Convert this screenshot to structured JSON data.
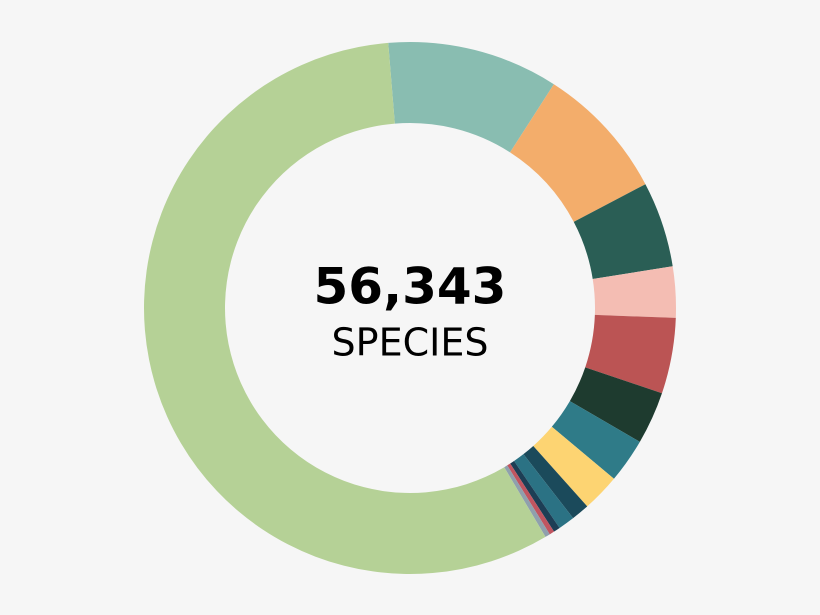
{
  "chart_data": {
    "type": "donut",
    "center_value": "56,343",
    "center_label": "SPECIES",
    "values": [
      10.4,
      8.2,
      5.2,
      3.1,
      4.6,
      3.2,
      2.7,
      2.3,
      1.1,
      1.0,
      0.4,
      0.3,
      0.3,
      57.2
    ],
    "colors": [
      "#89bdb1",
      "#f3ad6b",
      "#2a5e55",
      "#f4bdb3",
      "#bb5454",
      "#1e3b2f",
      "#2f7b88",
      "#fdd472",
      "#1b4a5b",
      "#2b7284",
      "#1d3e55",
      "#c05560",
      "#8fa0ad",
      "#b5d196"
    ]
  }
}
